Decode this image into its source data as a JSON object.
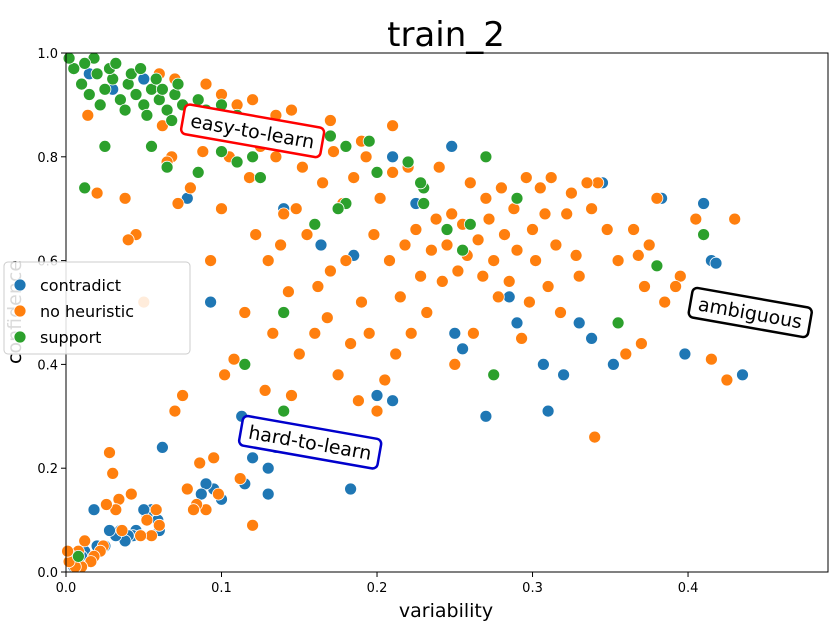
{
  "chart_data": {
    "type": "scatter",
    "title": "train_2",
    "xlabel": "variability",
    "ylabel": "confidence",
    "xlim": [
      0.0,
      0.49
    ],
    "ylim": [
      0.0,
      1.0
    ],
    "xticks": [
      "0.0",
      "0.1",
      "0.2",
      "0.3",
      "0.4"
    ],
    "yticks": [
      "0.0",
      "0.2",
      "0.4",
      "0.6",
      "0.8",
      "1.0"
    ],
    "grid": false,
    "legend_position": "center-left",
    "series": [
      {
        "name": "contradict",
        "color": "#1f77b4",
        "points": [
          [
            0.41,
            0.71
          ],
          [
            0.415,
            0.6
          ],
          [
            0.418,
            0.595
          ],
          [
            0.435,
            0.38
          ],
          [
            0.398,
            0.42
          ],
          [
            0.352,
            0.4
          ],
          [
            0.345,
            0.75
          ],
          [
            0.383,
            0.72
          ],
          [
            0.32,
            0.38
          ],
          [
            0.33,
            0.48
          ],
          [
            0.338,
            0.45
          ],
          [
            0.31,
            0.31
          ],
          [
            0.307,
            0.4
          ],
          [
            0.29,
            0.48
          ],
          [
            0.27,
            0.3
          ],
          [
            0.285,
            0.53
          ],
          [
            0.255,
            0.43
          ],
          [
            0.25,
            0.46
          ],
          [
            0.248,
            0.82
          ],
          [
            0.225,
            0.71
          ],
          [
            0.21,
            0.8
          ],
          [
            0.21,
            0.33
          ],
          [
            0.2,
            0.34
          ],
          [
            0.185,
            0.61
          ],
          [
            0.183,
            0.16
          ],
          [
            0.164,
            0.63
          ],
          [
            0.14,
            0.7
          ],
          [
            0.13,
            0.15
          ],
          [
            0.12,
            0.22
          ],
          [
            0.115,
            0.17
          ],
          [
            0.13,
            0.2
          ],
          [
            0.135,
            0.24
          ],
          [
            0.113,
            0.3
          ],
          [
            0.1,
            0.14
          ],
          [
            0.095,
            0.16
          ],
          [
            0.09,
            0.17
          ],
          [
            0.087,
            0.15
          ],
          [
            0.093,
            0.52
          ],
          [
            0.078,
            0.72
          ],
          [
            0.062,
            0.24
          ],
          [
            0.059,
            0.1
          ],
          [
            0.06,
            0.08
          ],
          [
            0.055,
            0.12
          ],
          [
            0.052,
            0.11
          ],
          [
            0.05,
            0.12
          ],
          [
            0.045,
            0.08
          ],
          [
            0.043,
            0.07
          ],
          [
            0.04,
            0.07
          ],
          [
            0.038,
            0.06
          ],
          [
            0.035,
            0.08
          ],
          [
            0.032,
            0.07
          ],
          [
            0.028,
            0.08
          ],
          [
            0.025,
            0.05
          ],
          [
            0.022,
            0.04
          ],
          [
            0.02,
            0.05
          ],
          [
            0.018,
            0.12
          ],
          [
            0.015,
            0.03
          ],
          [
            0.012,
            0.04
          ],
          [
            0.01,
            0.03
          ],
          [
            0.008,
            0.02
          ],
          [
            0.005,
            0.01
          ],
          [
            0.003,
            0.02
          ],
          [
            0.015,
            0.96
          ],
          [
            0.03,
            0.93
          ],
          [
            0.05,
            0.95
          ]
        ]
      },
      {
        "name": "no heuristic",
        "color": "#ff7f0e",
        "points": [
          [
            0.43,
            0.68
          ],
          [
            0.425,
            0.37
          ],
          [
            0.415,
            0.41
          ],
          [
            0.405,
            0.68
          ],
          [
            0.395,
            0.57
          ],
          [
            0.392,
            0.55
          ],
          [
            0.385,
            0.52
          ],
          [
            0.38,
            0.72
          ],
          [
            0.375,
            0.63
          ],
          [
            0.372,
            0.55
          ],
          [
            0.37,
            0.44
          ],
          [
            0.368,
            0.61
          ],
          [
            0.365,
            0.66
          ],
          [
            0.36,
            0.42
          ],
          [
            0.355,
            0.6
          ],
          [
            0.348,
            0.66
          ],
          [
            0.342,
            0.75
          ],
          [
            0.34,
            0.26
          ],
          [
            0.338,
            0.7
          ],
          [
            0.335,
            0.75
          ],
          [
            0.33,
            0.57
          ],
          [
            0.328,
            0.61
          ],
          [
            0.325,
            0.73
          ],
          [
            0.322,
            0.69
          ],
          [
            0.318,
            0.5
          ],
          [
            0.315,
            0.63
          ],
          [
            0.312,
            0.76
          ],
          [
            0.31,
            0.55
          ],
          [
            0.308,
            0.69
          ],
          [
            0.305,
            0.74
          ],
          [
            0.302,
            0.6
          ],
          [
            0.3,
            0.66
          ],
          [
            0.298,
            0.52
          ],
          [
            0.296,
            0.76
          ],
          [
            0.293,
            0.45
          ],
          [
            0.29,
            0.62
          ],
          [
            0.288,
            0.7
          ],
          [
            0.285,
            0.56
          ],
          [
            0.282,
            0.65
          ],
          [
            0.28,
            0.74
          ],
          [
            0.278,
            0.53
          ],
          [
            0.275,
            0.6
          ],
          [
            0.272,
            0.68
          ],
          [
            0.27,
            0.72
          ],
          [
            0.268,
            0.57
          ],
          [
            0.265,
            0.64
          ],
          [
            0.262,
            0.46
          ],
          [
            0.26,
            0.75
          ],
          [
            0.258,
            0.61
          ],
          [
            0.255,
            0.67
          ],
          [
            0.252,
            0.58
          ],
          [
            0.25,
            0.4
          ],
          [
            0.248,
            0.69
          ],
          [
            0.245,
            0.63
          ],
          [
            0.242,
            0.56
          ],
          [
            0.24,
            0.78
          ],
          [
            0.238,
            0.68
          ],
          [
            0.235,
            0.62
          ],
          [
            0.232,
            0.5
          ],
          [
            0.23,
            0.74
          ],
          [
            0.228,
            0.57
          ],
          [
            0.225,
            0.66
          ],
          [
            0.222,
            0.46
          ],
          [
            0.22,
            0.78
          ],
          [
            0.218,
            0.63
          ],
          [
            0.215,
            0.53
          ],
          [
            0.212,
            0.42
          ],
          [
            0.21,
            0.77
          ],
          [
            0.208,
            0.6
          ],
          [
            0.205,
            0.37
          ],
          [
            0.202,
            0.72
          ],
          [
            0.2,
            0.31
          ],
          [
            0.198,
            0.65
          ],
          [
            0.195,
            0.46
          ],
          [
            0.193,
            0.8
          ],
          [
            0.19,
            0.52
          ],
          [
            0.188,
            0.33
          ],
          [
            0.185,
            0.76
          ],
          [
            0.183,
            0.44
          ],
          [
            0.18,
            0.6
          ],
          [
            0.178,
            0.71
          ],
          [
            0.175,
            0.38
          ],
          [
            0.172,
            0.81
          ],
          [
            0.17,
            0.58
          ],
          [
            0.168,
            0.49
          ],
          [
            0.165,
            0.75
          ],
          [
            0.162,
            0.55
          ],
          [
            0.16,
            0.46
          ],
          [
            0.158,
            0.82
          ],
          [
            0.155,
            0.65
          ],
          [
            0.152,
            0.78
          ],
          [
            0.15,
            0.42
          ],
          [
            0.148,
            0.7
          ],
          [
            0.145,
            0.34
          ],
          [
            0.143,
            0.54
          ],
          [
            0.14,
            0.69
          ],
          [
            0.138,
            0.63
          ],
          [
            0.135,
            0.8
          ],
          [
            0.133,
            0.46
          ],
          [
            0.13,
            0.6
          ],
          [
            0.128,
            0.35
          ],
          [
            0.125,
            0.82
          ],
          [
            0.122,
            0.65
          ],
          [
            0.12,
            0.09
          ],
          [
            0.118,
            0.76
          ],
          [
            0.115,
            0.5
          ],
          [
            0.112,
            0.18
          ],
          [
            0.11,
            0.84
          ],
          [
            0.108,
            0.41
          ],
          [
            0.105,
            0.8
          ],
          [
            0.102,
            0.38
          ],
          [
            0.1,
            0.7
          ],
          [
            0.098,
            0.15
          ],
          [
            0.095,
            0.22
          ],
          [
            0.093,
            0.6
          ],
          [
            0.09,
            0.12
          ],
          [
            0.088,
            0.81
          ],
          [
            0.086,
            0.21
          ],
          [
            0.084,
            0.13
          ],
          [
            0.082,
            0.12
          ],
          [
            0.08,
            0.74
          ],
          [
            0.078,
            0.16
          ],
          [
            0.075,
            0.34
          ],
          [
            0.072,
            0.71
          ],
          [
            0.07,
            0.31
          ],
          [
            0.068,
            0.8
          ],
          [
            0.065,
            0.79
          ],
          [
            0.062,
            0.86
          ],
          [
            0.06,
            0.09
          ],
          [
            0.058,
            0.12
          ],
          [
            0.055,
            0.07
          ],
          [
            0.052,
            0.1
          ],
          [
            0.05,
            0.52
          ],
          [
            0.048,
            0.07
          ],
          [
            0.045,
            0.65
          ],
          [
            0.042,
            0.15
          ],
          [
            0.04,
            0.64
          ],
          [
            0.038,
            0.72
          ],
          [
            0.036,
            0.08
          ],
          [
            0.034,
            0.14
          ],
          [
            0.032,
            0.12
          ],
          [
            0.03,
            0.19
          ],
          [
            0.028,
            0.23
          ],
          [
            0.026,
            0.13
          ],
          [
            0.024,
            0.05
          ],
          [
            0.022,
            0.04
          ],
          [
            0.02,
            0.73
          ],
          [
            0.018,
            0.03
          ],
          [
            0.016,
            0.02
          ],
          [
            0.014,
            0.88
          ],
          [
            0.012,
            0.06
          ],
          [
            0.01,
            0.01
          ],
          [
            0.008,
            0.04
          ],
          [
            0.006,
            0.01
          ],
          [
            0.004,
            0.03
          ],
          [
            0.002,
            0.02
          ],
          [
            0.001,
            0.04
          ],
          [
            0.135,
            0.88
          ],
          [
            0.17,
            0.87
          ],
          [
            0.19,
            0.83
          ],
          [
            0.21,
            0.86
          ],
          [
            0.145,
            0.89
          ],
          [
            0.12,
            0.91
          ],
          [
            0.1,
            0.92
          ],
          [
            0.09,
            0.94
          ],
          [
            0.07,
            0.95
          ],
          [
            0.06,
            0.96
          ],
          [
            0.11,
            0.9
          ]
        ]
      },
      {
        "name": "support",
        "color": "#2ca02c",
        "points": [
          [
            0.41,
            0.65
          ],
          [
            0.38,
            0.59
          ],
          [
            0.355,
            0.48
          ],
          [
            0.29,
            0.72
          ],
          [
            0.275,
            0.38
          ],
          [
            0.27,
            0.8
          ],
          [
            0.26,
            0.67
          ],
          [
            0.255,
            0.62
          ],
          [
            0.245,
            0.66
          ],
          [
            0.23,
            0.74
          ],
          [
            0.23,
            0.71
          ],
          [
            0.228,
            0.75
          ],
          [
            0.22,
            0.79
          ],
          [
            0.2,
            0.77
          ],
          [
            0.195,
            0.83
          ],
          [
            0.18,
            0.71
          ],
          [
            0.175,
            0.7
          ],
          [
            0.16,
            0.67
          ],
          [
            0.14,
            0.5
          ],
          [
            0.125,
            0.76
          ],
          [
            0.115,
            0.4
          ],
          [
            0.14,
            0.31
          ],
          [
            0.12,
            0.8
          ],
          [
            0.11,
            0.79
          ],
          [
            0.1,
            0.81
          ],
          [
            0.085,
            0.77
          ],
          [
            0.065,
            0.78
          ],
          [
            0.055,
            0.82
          ],
          [
            0.025,
            0.82
          ],
          [
            0.012,
            0.74
          ],
          [
            0.008,
            0.03
          ],
          [
            0.005,
            0.97
          ],
          [
            0.01,
            0.94
          ],
          [
            0.015,
            0.92
          ],
          [
            0.02,
            0.96
          ],
          [
            0.025,
            0.93
          ],
          [
            0.03,
            0.95
          ],
          [
            0.035,
            0.91
          ],
          [
            0.04,
            0.94
          ],
          [
            0.045,
            0.92
          ],
          [
            0.05,
            0.9
          ],
          [
            0.055,
            0.93
          ],
          [
            0.06,
            0.91
          ],
          [
            0.065,
            0.89
          ],
          [
            0.07,
            0.92
          ],
          [
            0.075,
            0.9
          ],
          [
            0.08,
            0.88
          ],
          [
            0.085,
            0.91
          ],
          [
            0.09,
            0.89
          ],
          [
            0.095,
            0.87
          ],
          [
            0.1,
            0.9
          ],
          [
            0.105,
            0.86
          ],
          [
            0.11,
            0.88
          ],
          [
            0.115,
            0.85
          ],
          [
            0.12,
            0.87
          ],
          [
            0.125,
            0.85
          ],
          [
            0.13,
            0.86
          ],
          [
            0.14,
            0.84
          ],
          [
            0.15,
            0.85
          ],
          [
            0.16,
            0.83
          ],
          [
            0.17,
            0.84
          ],
          [
            0.18,
            0.82
          ],
          [
            0.028,
            0.97
          ],
          [
            0.042,
            0.96
          ],
          [
            0.058,
            0.95
          ],
          [
            0.072,
            0.94
          ],
          [
            0.018,
            0.99
          ],
          [
            0.032,
            0.98
          ],
          [
            0.048,
            0.97
          ],
          [
            0.062,
            0.93
          ],
          [
            0.038,
            0.89
          ],
          [
            0.052,
            0.88
          ],
          [
            0.068,
            0.87
          ],
          [
            0.078,
            0.86
          ],
          [
            0.022,
            0.9
          ],
          [
            0.012,
            0.98
          ],
          [
            0.002,
            0.99
          ]
        ]
      }
    ],
    "annotations": [
      {
        "text": "easy-to-learn",
        "x": 0.12,
        "y": 0.85,
        "rotation": 10,
        "border": "#ff0000"
      },
      {
        "text": "ambiguous",
        "x": 0.44,
        "y": 0.5,
        "rotation": 10,
        "border": "#000000"
      },
      {
        "text": "hard-to-learn",
        "x": 0.157,
        "y": 0.25,
        "rotation": 10,
        "border": "#0000cc"
      }
    ]
  }
}
